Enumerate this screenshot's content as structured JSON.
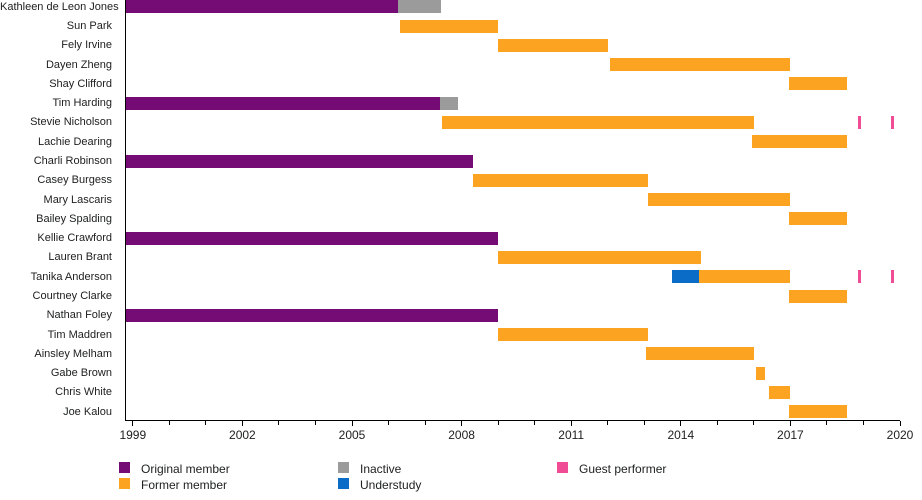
{
  "chart_data": {
    "type": "bar",
    "variant": "horizontal-gantt-membership-timeline",
    "title": "",
    "xlabel": "",
    "ylabel": "",
    "xlim": [
      1998.8,
      2020.0
    ],
    "grid": false,
    "legend_position": "bottom",
    "x_axis": {
      "minor_tick_years": [
        1999,
        2000,
        2001,
        2002,
        2003,
        2004,
        2005,
        2006,
        2007,
        2008,
        2009,
        2010,
        2011,
        2012,
        2013,
        2014,
        2015,
        2016,
        2017,
        2018,
        2019,
        2020
      ],
      "label_years": [
        1999,
        2002,
        2005,
        2008,
        2011,
        2014,
        2017,
        2020
      ]
    },
    "status_colors": {
      "original": "#750b75",
      "former": "#fca321",
      "inactive": "#9b9b9b",
      "understudy": "#0b6cc7",
      "guest": "#ef4c95"
    },
    "members": [
      {
        "name": "Kathleen de Leon Jones",
        "segments": [
          {
            "status": "original",
            "start": 1998.8,
            "end": 2006.25
          },
          {
            "status": "inactive",
            "start": 2006.25,
            "end": 2007.45
          }
        ],
        "guest_marks": []
      },
      {
        "name": "Sun Park",
        "segments": [
          {
            "status": "former",
            "start": 2006.3,
            "end": 2009.0
          }
        ],
        "guest_marks": []
      },
      {
        "name": "Fely Irvine",
        "segments": [
          {
            "status": "former",
            "start": 2009.0,
            "end": 2012.0
          }
        ],
        "guest_marks": []
      },
      {
        "name": "Dayen Zheng",
        "segments": [
          {
            "status": "former",
            "start": 2012.05,
            "end": 2017.0
          }
        ],
        "guest_marks": []
      },
      {
        "name": "Shay Clifford",
        "segments": [
          {
            "status": "former",
            "start": 2016.95,
            "end": 2018.55
          }
        ],
        "guest_marks": []
      },
      {
        "name": "Tim Harding",
        "segments": [
          {
            "status": "original",
            "start": 1998.8,
            "end": 2007.4
          },
          {
            "status": "inactive",
            "start": 2007.4,
            "end": 2007.9
          }
        ],
        "guest_marks": []
      },
      {
        "name": "Stevie Nicholson",
        "segments": [
          {
            "status": "former",
            "start": 2007.45,
            "end": 2016.0
          }
        ],
        "guest_marks": [
          2018.9,
          2019.8
        ]
      },
      {
        "name": "Lachie Dearing",
        "segments": [
          {
            "status": "former",
            "start": 2015.95,
            "end": 2018.55
          }
        ],
        "guest_marks": []
      },
      {
        "name": "Charli Robinson",
        "segments": [
          {
            "status": "original",
            "start": 1998.8,
            "end": 2008.3
          }
        ],
        "guest_marks": []
      },
      {
        "name": "Casey Burgess",
        "segments": [
          {
            "status": "former",
            "start": 2008.3,
            "end": 2013.1
          }
        ],
        "guest_marks": []
      },
      {
        "name": "Mary Lascaris",
        "segments": [
          {
            "status": "former",
            "start": 2013.1,
            "end": 2017.0
          }
        ],
        "guest_marks": []
      },
      {
        "name": "Bailey Spalding",
        "segments": [
          {
            "status": "former",
            "start": 2016.95,
            "end": 2018.55
          }
        ],
        "guest_marks": []
      },
      {
        "name": "Kellie Crawford",
        "segments": [
          {
            "status": "original",
            "start": 1998.8,
            "end": 2009.0
          }
        ],
        "guest_marks": []
      },
      {
        "name": "Lauren Brant",
        "segments": [
          {
            "status": "former",
            "start": 2009.0,
            "end": 2014.55
          }
        ],
        "guest_marks": []
      },
      {
        "name": "Tanika Anderson",
        "segments": [
          {
            "status": "understudy",
            "start": 2013.75,
            "end": 2014.5
          },
          {
            "status": "former",
            "start": 2014.5,
            "end": 2017.0
          }
        ],
        "guest_marks": [
          2018.9,
          2019.8
        ]
      },
      {
        "name": "Courtney Clarke",
        "segments": [
          {
            "status": "former",
            "start": 2016.95,
            "end": 2018.55
          }
        ],
        "guest_marks": []
      },
      {
        "name": "Nathan Foley",
        "segments": [
          {
            "status": "original",
            "start": 1998.8,
            "end": 2009.0
          }
        ],
        "guest_marks": []
      },
      {
        "name": "Tim Maddren",
        "segments": [
          {
            "status": "former",
            "start": 2009.0,
            "end": 2013.1
          }
        ],
        "guest_marks": []
      },
      {
        "name": "Ainsley Melham",
        "segments": [
          {
            "status": "former",
            "start": 2013.05,
            "end": 2016.0
          }
        ],
        "guest_marks": []
      },
      {
        "name": "Gabe Brown",
        "segments": [
          {
            "status": "former",
            "start": 2016.05,
            "end": 2016.3
          }
        ],
        "guest_marks": []
      },
      {
        "name": "Chris White",
        "segments": [
          {
            "status": "former",
            "start": 2016.4,
            "end": 2017.0
          }
        ],
        "guest_marks": []
      },
      {
        "name": "Joe Kalou",
        "segments": [
          {
            "status": "former",
            "start": 2016.95,
            "end": 2018.55
          }
        ],
        "guest_marks": []
      }
    ],
    "legend": {
      "columns": [
        [
          {
            "label": "Original member",
            "status": "original"
          },
          {
            "label": "Former member",
            "status": "former"
          }
        ],
        [
          {
            "label": "Inactive",
            "status": "inactive"
          },
          {
            "label": "Understudy",
            "status": "understudy"
          }
        ],
        [
          {
            "label": "Guest performer",
            "status": "guest"
          }
        ]
      ]
    }
  }
}
